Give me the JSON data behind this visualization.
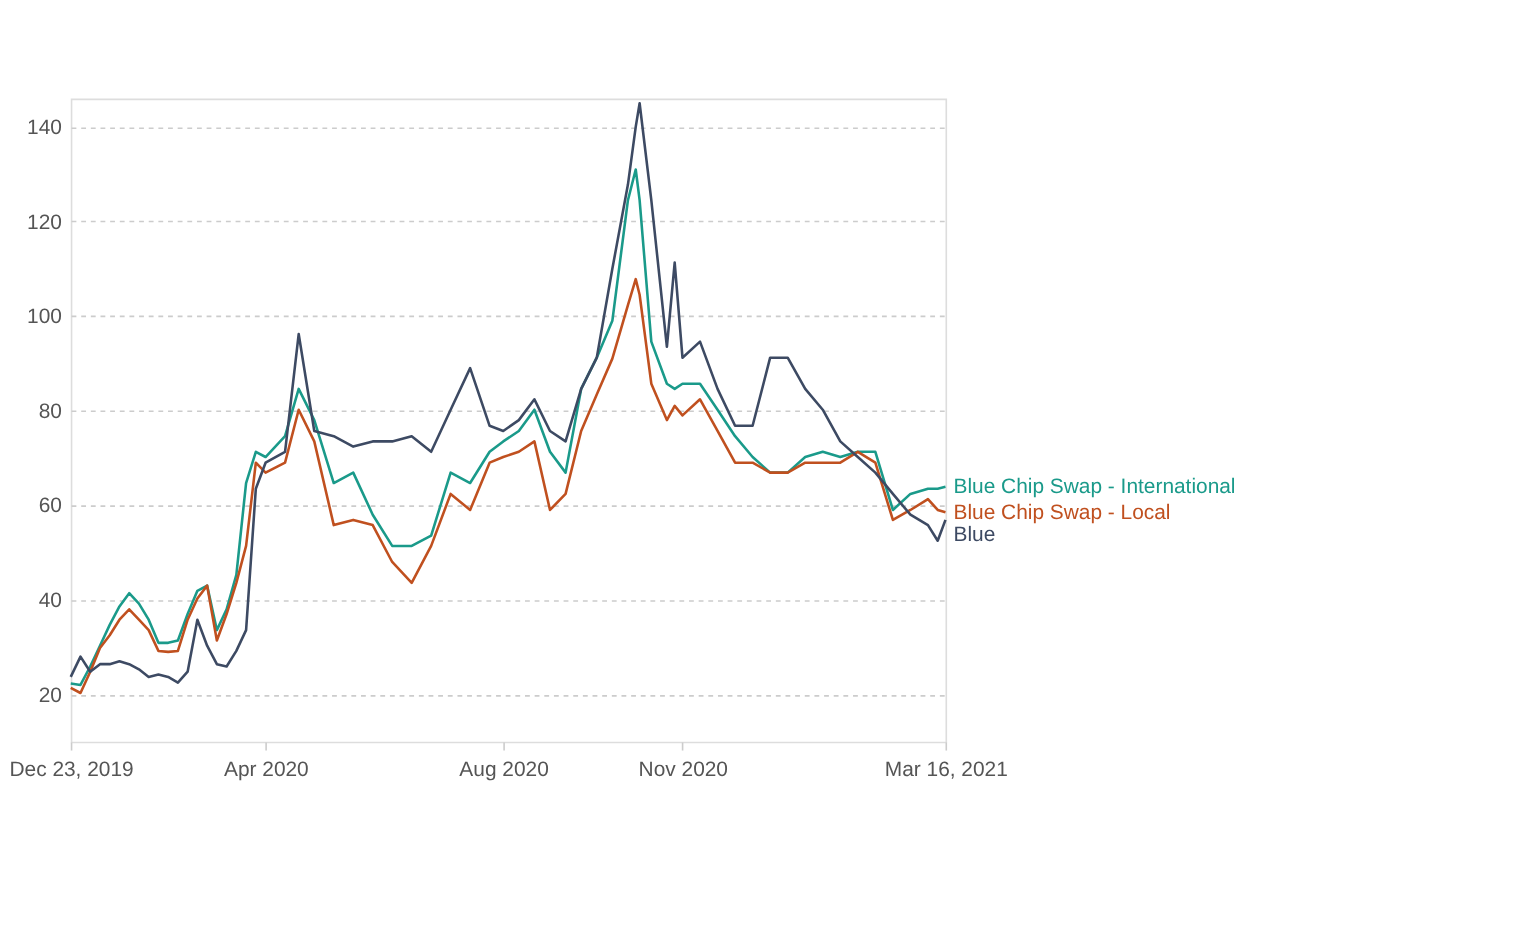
{
  "chart_data": {
    "type": "line",
    "x": [
      "2019-12-23",
      "2019-12-28",
      "2020-01-02",
      "2020-01-07",
      "2020-01-12",
      "2020-01-17",
      "2020-01-22",
      "2020-01-27",
      "2020-02-01",
      "2020-02-06",
      "2020-02-11",
      "2020-02-16",
      "2020-02-21",
      "2020-02-26",
      "2020-03-02",
      "2020-03-07",
      "2020-03-12",
      "2020-03-17",
      "2020-03-22",
      "2020-03-27",
      "2020-04-01",
      "2020-04-11",
      "2020-04-18",
      "2020-04-26",
      "2020-05-06",
      "2020-05-16",
      "2020-05-26",
      "2020-06-05",
      "2020-06-15",
      "2020-06-25",
      "2020-07-05",
      "2020-07-15",
      "2020-07-25",
      "2020-08-01",
      "2020-08-09",
      "2020-08-17",
      "2020-08-25",
      "2020-09-02",
      "2020-09-10",
      "2020-09-18",
      "2020-09-26",
      "2020-10-04",
      "2020-10-08",
      "2020-10-10",
      "2020-10-16",
      "2020-10-24",
      "2020-10-28",
      "2020-11-01",
      "2020-11-10",
      "2020-11-19",
      "2020-11-28",
      "2020-12-07",
      "2020-12-16",
      "2020-12-25",
      "2021-01-03",
      "2021-01-12",
      "2021-01-21",
      "2021-01-30",
      "2021-02-08",
      "2021-02-17",
      "2021-02-26",
      "2021-03-07",
      "2021-03-12",
      "2021-03-16"
    ],
    "series": [
      {
        "name": "Blue Chip Swap - International",
        "color": "#1a9a8a",
        "values": [
          22.3,
          22,
          25.9,
          30.3,
          34.7,
          38.6,
          41.4,
          39.2,
          35.8,
          30.9,
          30.9,
          31.4,
          37,
          41.9,
          43,
          33.6,
          38,
          45.3,
          64.7,
          71.3,
          70.2,
          74.6,
          84.6,
          78,
          64.7,
          66.9,
          58,
          51.4,
          51.4,
          53.6,
          66.9,
          64.7,
          71.3,
          73.5,
          75.7,
          80.2,
          71.3,
          66.9,
          84.6,
          91.2,
          99,
          124.5,
          131,
          124.5,
          94.6,
          85.7,
          84.6,
          85.7,
          85.7,
          80.2,
          74.6,
          70.2,
          66.9,
          66.9,
          70.2,
          71.3,
          70.2,
          71.3,
          71.3,
          59,
          62.4,
          63.5,
          63.5,
          63.9
        ]
      },
      {
        "name": "Blue Chip Swap - Local",
        "color": "#c0501f",
        "values": [
          21.4,
          20.3,
          24.8,
          29.8,
          32.5,
          35.8,
          38,
          35.8,
          33.6,
          29.2,
          29,
          29.2,
          35.8,
          40.3,
          43,
          31.4,
          37,
          43.6,
          51.4,
          69,
          66.9,
          69,
          80.2,
          73.5,
          55.8,
          56.9,
          55.8,
          48,
          43.6,
          51.4,
          62.4,
          59,
          69,
          70.2,
          71.3,
          73.5,
          59,
          62.4,
          75.7,
          83.4,
          91,
          102.3,
          107.8,
          104.5,
          85.7,
          78,
          81,
          79,
          82.4,
          75.7,
          69,
          69,
          66.9,
          66.9,
          69,
          69,
          69,
          71.3,
          69,
          56.9,
          59,
          61.3,
          59,
          58.5
        ]
      },
      {
        "name": "Blue",
        "color": "#3d4a63",
        "values": [
          23.7,
          28,
          24.8,
          26.4,
          26.4,
          27,
          26.4,
          25.3,
          23.7,
          24.2,
          23.7,
          22.5,
          24.8,
          35.8,
          30.3,
          26.4,
          25.9,
          29.2,
          33.6,
          63.5,
          69,
          71.3,
          96.2,
          75.7,
          74.6,
          72.4,
          73.5,
          73.5,
          74.6,
          71.3,
          80.2,
          89,
          76.8,
          75.7,
          78,
          82.4,
          75.7,
          73.5,
          84.6,
          91.2,
          110,
          127.8,
          140,
          145,
          124.5,
          93.5,
          111.3,
          91.2,
          94.6,
          84.6,
          76.8,
          76.8,
          91.2,
          91.2,
          84.6,
          80.2,
          73.5,
          70.2,
          66.9,
          62.4,
          58,
          55.8,
          52.5,
          56.9
        ]
      }
    ],
    "xlim": [
      "2019-12-23",
      "2021-03-16"
    ],
    "xticks": [
      {
        "value": "2019-12-23",
        "label": "Dec 23, 2019"
      },
      {
        "value": "2020-04-01",
        "label": "Apr 2020"
      },
      {
        "value": "2020-08-01",
        "label": "Aug 2020"
      },
      {
        "value": "2020-11-01",
        "label": "Nov 2020"
      },
      {
        "value": "2021-03-16",
        "label": "Mar 16, 2021"
      }
    ],
    "ylim": [
      10,
      146
    ],
    "yticks": [
      20,
      40,
      60,
      80,
      100,
      120,
      140
    ],
    "grid": "y",
    "line_style": "solid",
    "marker": "none"
  }
}
